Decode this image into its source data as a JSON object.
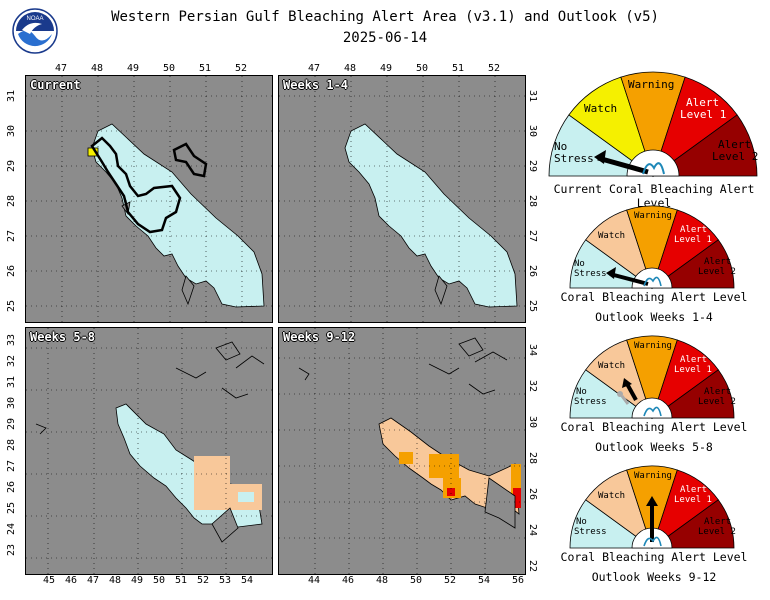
{
  "header": {
    "title_line1": "Western Persian Gulf Bleaching Alert Area (v3.1) and Outlook (v5)",
    "title_line2": "2025-06-14",
    "logo_text": "NOAA"
  },
  "panels": [
    {
      "label": "Current",
      "top_ticks": [
        "47",
        "48",
        "49",
        "50",
        "51",
        "52"
      ],
      "right_ticks": [
        "31",
        "30",
        "29",
        "28",
        "27",
        "26",
        "25"
      ],
      "left_ticks": [
        "31",
        "30",
        "29",
        "28",
        "27",
        "26",
        "25"
      ]
    },
    {
      "label": "Weeks 1-4",
      "top_ticks": [
        "47",
        "48",
        "49",
        "50",
        "51",
        "52"
      ],
      "right_ticks": [
        "31",
        "30",
        "29",
        "28",
        "27",
        "26",
        "25"
      ]
    },
    {
      "label": "Weeks 5-8",
      "left_ticks": [
        "33",
        "32",
        "31",
        "30",
        "29",
        "28",
        "27",
        "26",
        "25",
        "24",
        "23"
      ],
      "bottom_ticks": [
        "45",
        "46",
        "47",
        "48",
        "49",
        "50",
        "51",
        "52",
        "53",
        "54"
      ]
    },
    {
      "label": "Weeks 9-12",
      "right_ticks": [
        "34",
        "32",
        "30",
        "28",
        "26",
        "24",
        "22"
      ],
      "bottom_ticks": [
        "44",
        "46",
        "48",
        "50",
        "52",
        "54",
        "56"
      ]
    }
  ],
  "legend_levels": [
    "No Stress",
    "Watch",
    "Warning",
    "Alert Level 1",
    "Alert Level 2"
  ],
  "gauges": [
    {
      "caption1": "Current Coral Bleaching Alert Level",
      "caption2": "",
      "level": "No Stress"
    },
    {
      "caption1": "Coral Bleaching Alert Level",
      "caption2": "Outlook Weeks 1-4",
      "level": "No Stress"
    },
    {
      "caption1": "Coral Bleaching Alert Level",
      "caption2": "Outlook Weeks 5-8",
      "level": "Watch"
    },
    {
      "caption1": "Coral Bleaching Alert Level",
      "caption2": "Outlook Weeks 9-12",
      "level": "Warning"
    }
  ],
  "colors": {
    "no_stress": "#c8f0f0",
    "watch": "#f5f000",
    "warning": "#f5a000",
    "alert1": "#e60000",
    "alert2": "#960000",
    "watch_outlook": "#f8c89a",
    "land": "#8c8c8c",
    "water": "#c8f0f0"
  }
}
